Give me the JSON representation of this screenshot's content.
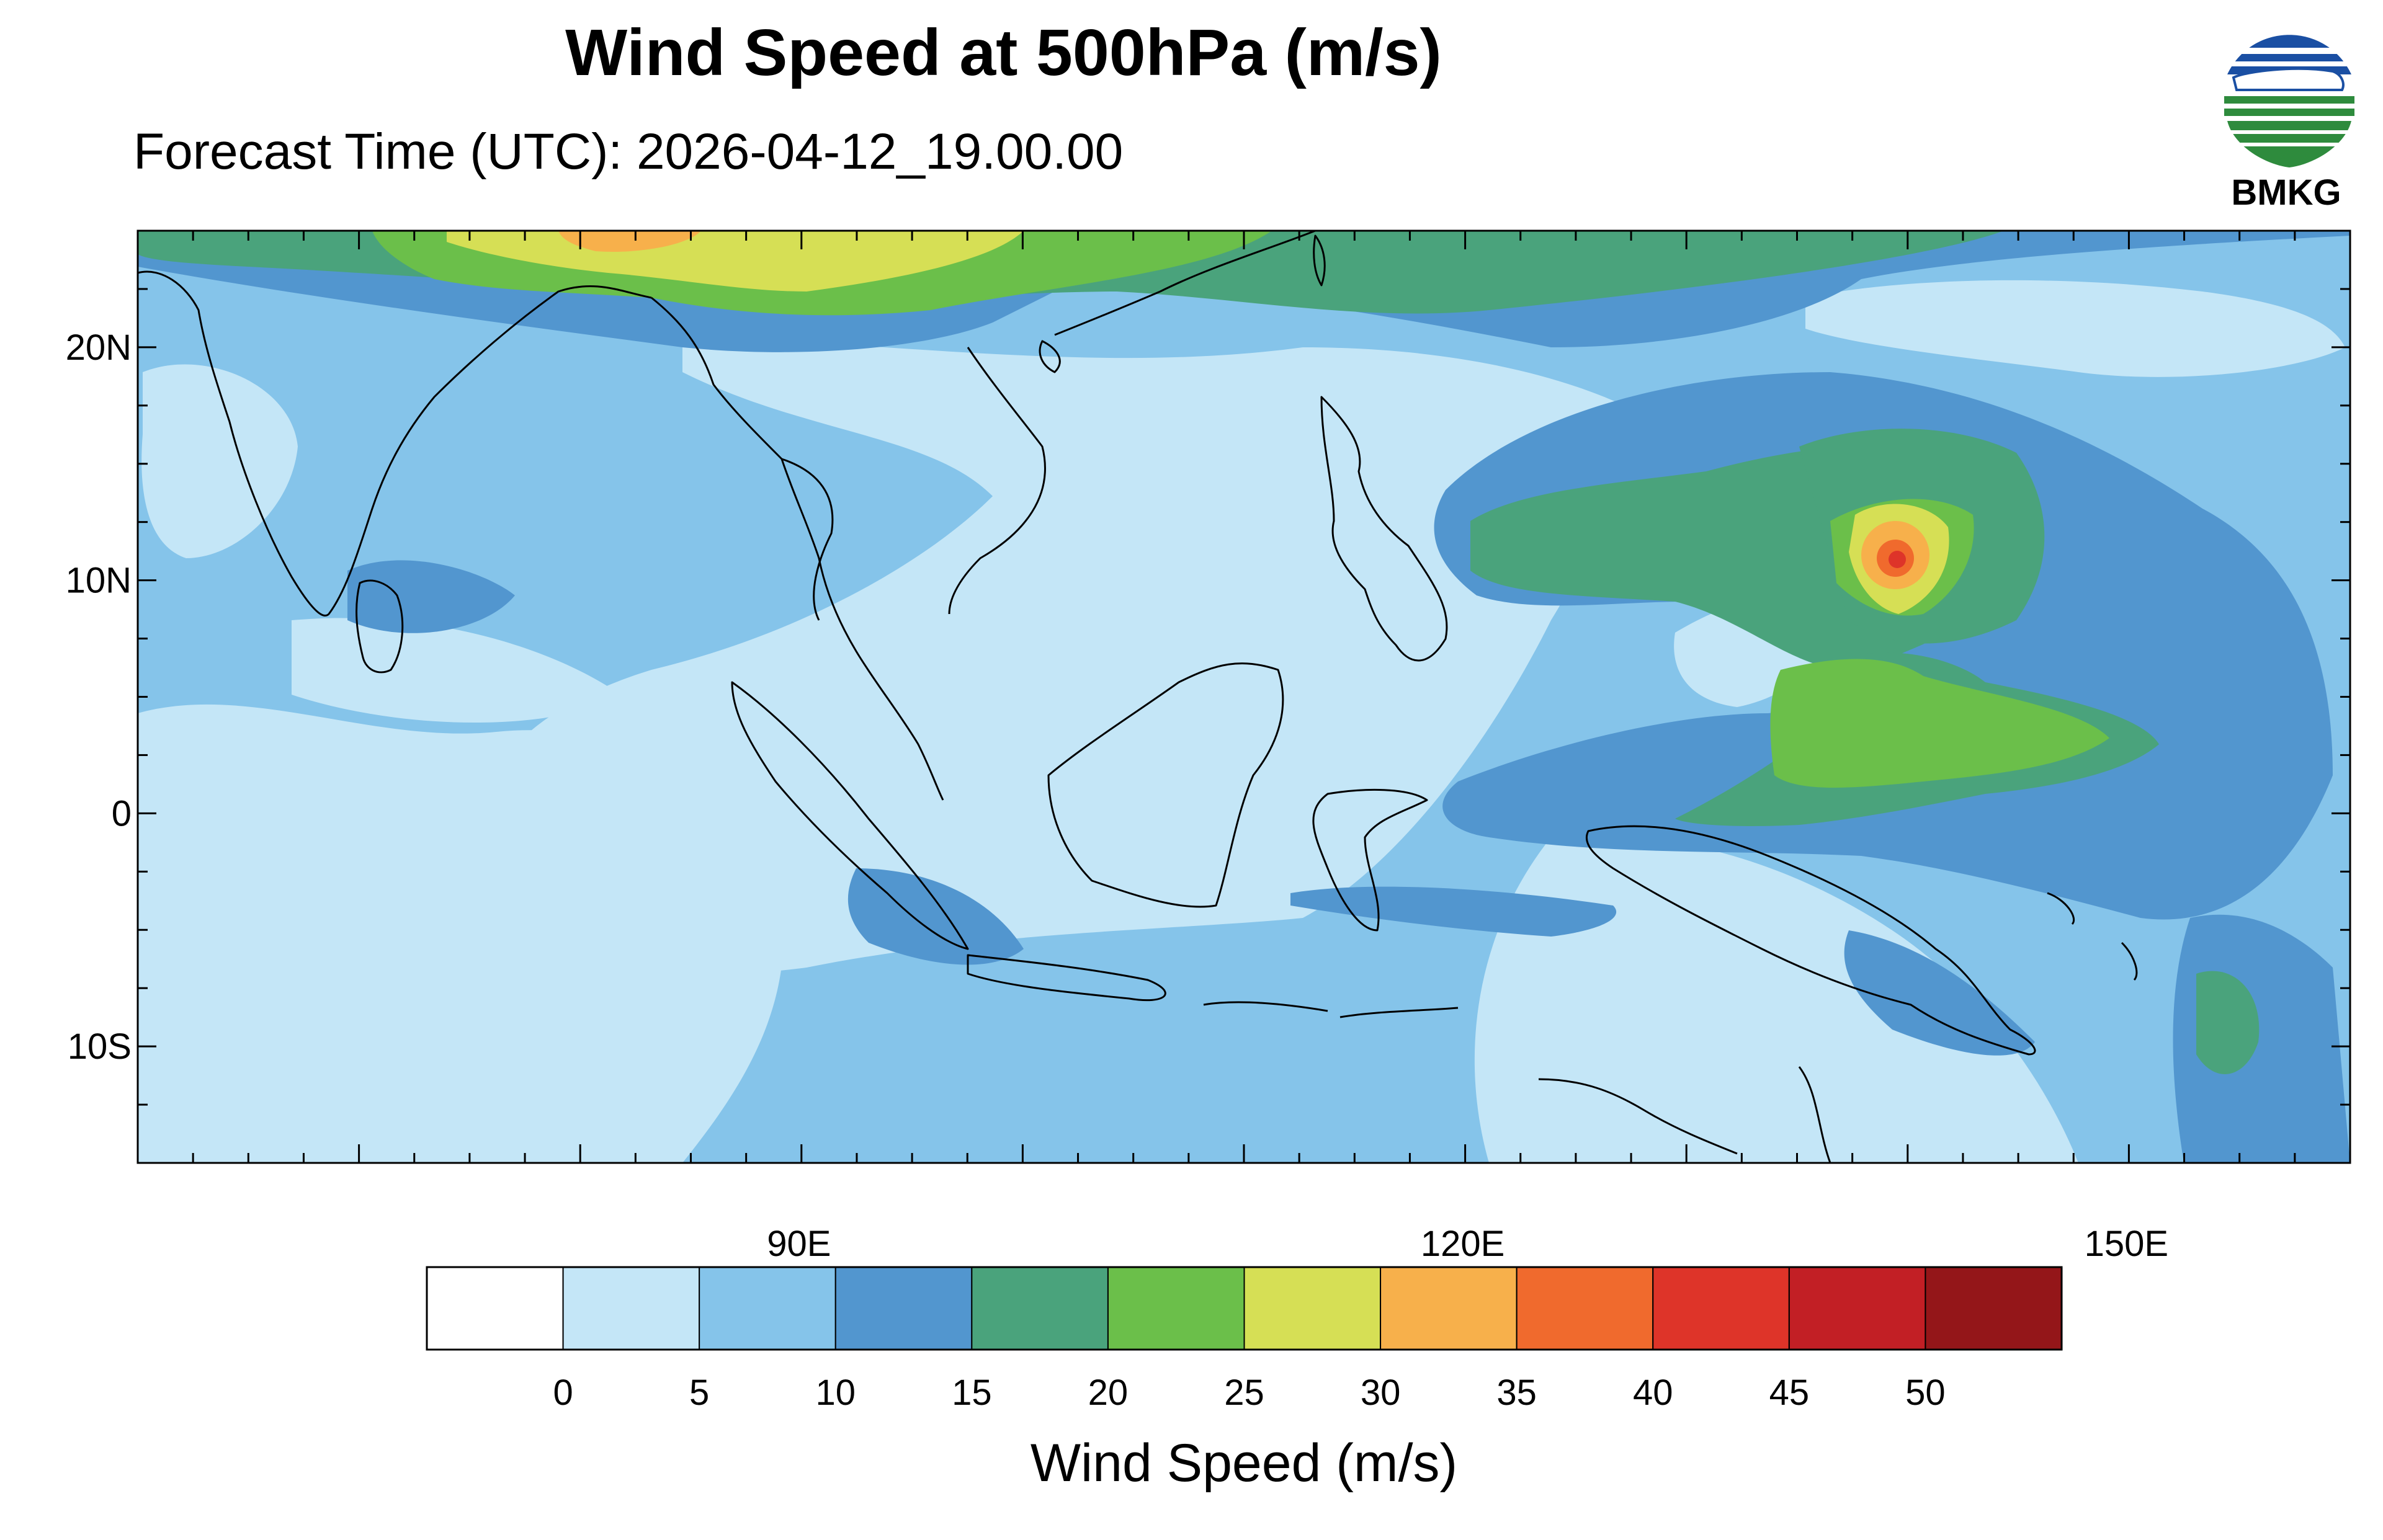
{
  "title": "Wind Speed at 500hPa (m/s)",
  "subtitle": "Forecast Time (UTC): 2026-04-12_19.00.00",
  "logo_text": "BMKG",
  "map": {
    "lon_range": [
      60,
      160
    ],
    "lat_range": [
      -15,
      25
    ],
    "lat_labels": [
      {
        "value": 20,
        "text": "20N"
      },
      {
        "value": 10,
        "text": "10N"
      },
      {
        "value": 0,
        "text": "0"
      },
      {
        "value": -10,
        "text": "10S"
      }
    ],
    "lon_labels": [
      {
        "value": 90,
        "text": "90E"
      },
      {
        "value": 120,
        "text": "120E"
      },
      {
        "value": 150,
        "text": "150E"
      }
    ],
    "coastline_color": "#000000"
  },
  "colorbar": {
    "label": "Wind Speed (m/s)",
    "colors": [
      "#ffffff",
      "#c4e6f7",
      "#85c4ea",
      "#5296cf",
      "#4aa37c",
      "#6bbf4a",
      "#d6df55",
      "#f7b04b",
      "#f06a2d",
      "#de3429",
      "#c21f25",
      "#941619"
    ],
    "tick_labels": [
      "0",
      "5",
      "10",
      "15",
      "20",
      "25",
      "30",
      "35",
      "40",
      "45",
      "50"
    ]
  }
}
